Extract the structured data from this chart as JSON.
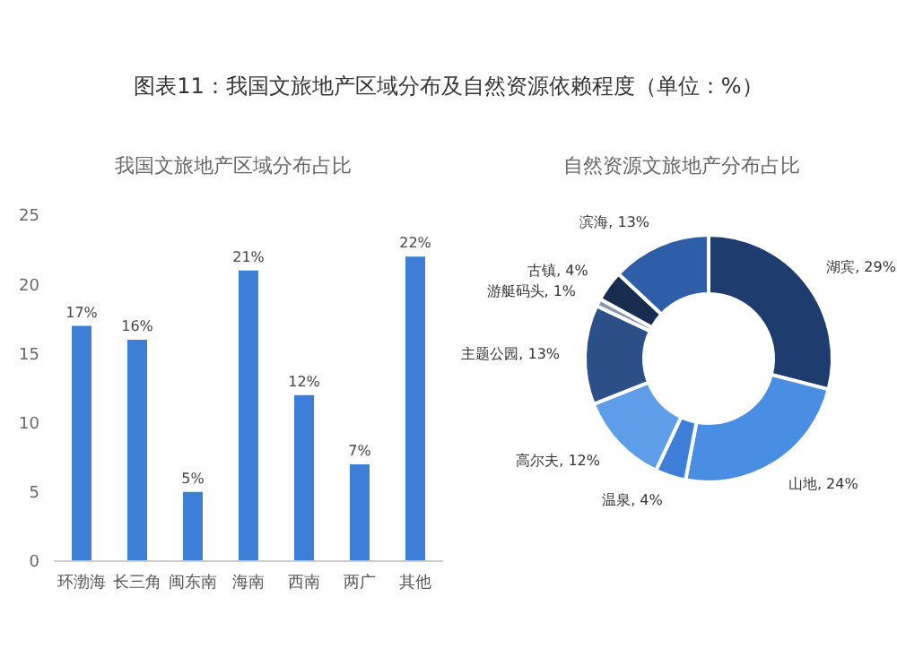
{
  "chart_data": [
    {
      "type": "bar",
      "title": "图表11：我国文旅地产区域分布及自然资源依赖程度（单位：%）",
      "subtitle": "我国文旅地产区域分布占比",
      "categories": [
        "环渤海",
        "长三角",
        "闽东南",
        "海南",
        "西南",
        "两广",
        "其他"
      ],
      "values": [
        17,
        16,
        5,
        21,
        12,
        7,
        22
      ],
      "color": "#3d7fd6",
      "value_labels": [
        "17%",
        "16%",
        "5%",
        "21%",
        "12%",
        "7%",
        "22%"
      ],
      "ylim": [
        0,
        25
      ],
      "yticks": [
        0,
        5,
        10,
        15,
        20,
        25
      ],
      "grid": false
    },
    {
      "type": "donut",
      "title": "自然资源文旅地产分布占比",
      "categories": [
        "湖宾",
        "山地",
        "温泉",
        "高尔夫",
        "主题公园",
        "游艇码头",
        "古镇",
        "滨海"
      ],
      "values": [
        29,
        24,
        4,
        12,
        13,
        1,
        4,
        13
      ],
      "colors": [
        "#1f3c6e",
        "#4a8ee3",
        "#3c7ed8",
        "#5e9de8",
        "#2b4f86",
        "#8a98aa",
        "#182c4f",
        "#2e5ea8"
      ],
      "value_labels": [
        "29%",
        "24%",
        "4%",
        "12%",
        "13%",
        "1%",
        "4%",
        "13%"
      ]
    }
  ]
}
